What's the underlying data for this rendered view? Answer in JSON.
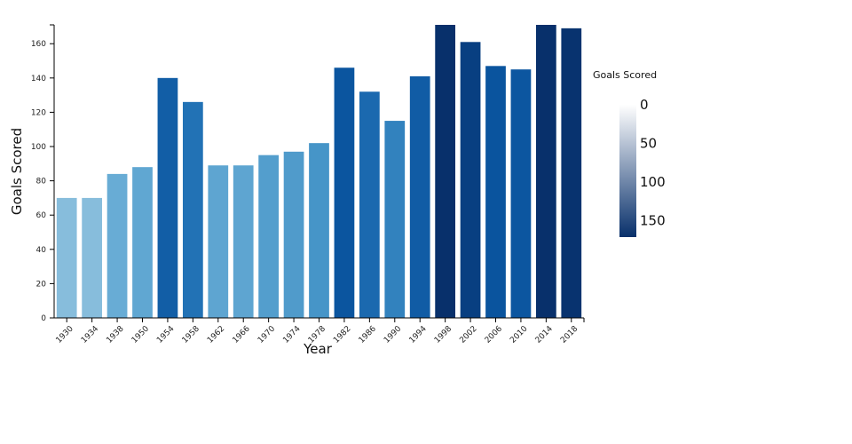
{
  "chart_data": {
    "type": "bar",
    "title": "",
    "xlabel": "Year",
    "ylabel": "Goals Scored",
    "categories": [
      "1930",
      "1934",
      "1938",
      "1950",
      "1954",
      "1958",
      "1962",
      "1966",
      "1970",
      "1974",
      "1978",
      "1982",
      "1986",
      "1990",
      "1994",
      "1998",
      "2002",
      "2006",
      "2010",
      "2014",
      "2018"
    ],
    "values": [
      70,
      70,
      84,
      88,
      140,
      126,
      89,
      89,
      95,
      97,
      102,
      146,
      132,
      115,
      141,
      171,
      161,
      147,
      145,
      171,
      169
    ],
    "ylim": [
      0,
      171
    ],
    "yticks": [
      0,
      20,
      40,
      60,
      80,
      100,
      120,
      140,
      160
    ],
    "color_scale": {
      "title": "Goals Scored",
      "domain": [
        0,
        171
      ],
      "ticks": [
        0,
        50,
        100,
        150
      ],
      "legend_colors": [
        "#ffffff",
        "#08306b"
      ],
      "bar_colors": [
        "#deebf7",
        "#c6dbef",
        "#9ecae1",
        "#6baed6",
        "#4292c6",
        "#2171b5",
        "#08519c",
        "#08306b"
      ],
      "legend_position": "right"
    },
    "grid": false
  }
}
